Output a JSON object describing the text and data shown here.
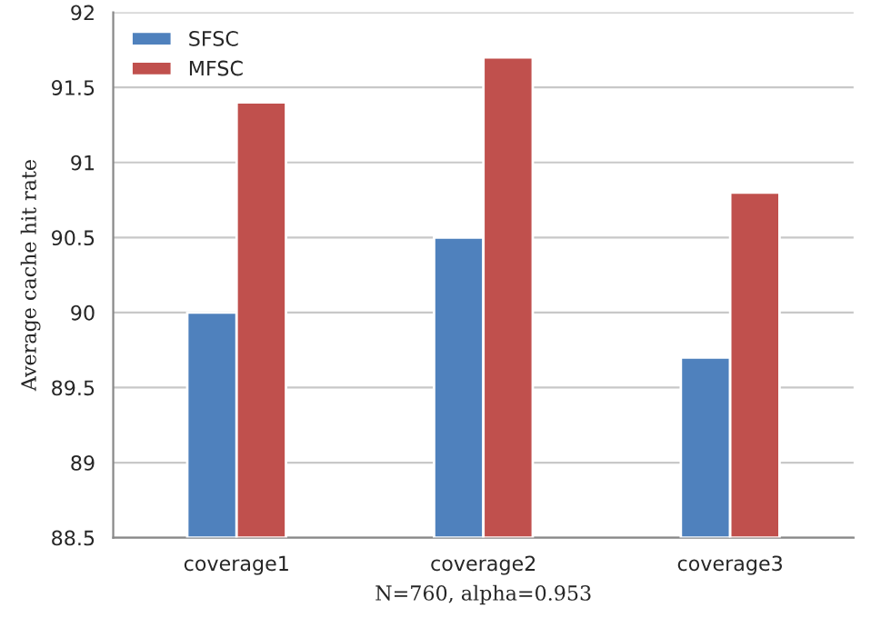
{
  "chart_data": {
    "type": "bar",
    "categories": [
      "coverage1",
      "coverage2",
      "coverage3"
    ],
    "series": [
      {
        "name": "SFSC",
        "color": "#4f81bd",
        "values": [
          90,
          90.5,
          89.7
        ]
      },
      {
        "name": "MFSC",
        "color": "#c0504d",
        "values": [
          91.4,
          91.7,
          90.8
        ]
      }
    ],
    "xlabel": "N=760, alpha=0.953",
    "ylabel": "Average cache hit rate",
    "ylim": [
      88.5,
      92
    ],
    "yticks": [
      88.5,
      89,
      89.5,
      90,
      90.5,
      91,
      91.5,
      92
    ],
    "grid": "y",
    "legend": "top left"
  }
}
